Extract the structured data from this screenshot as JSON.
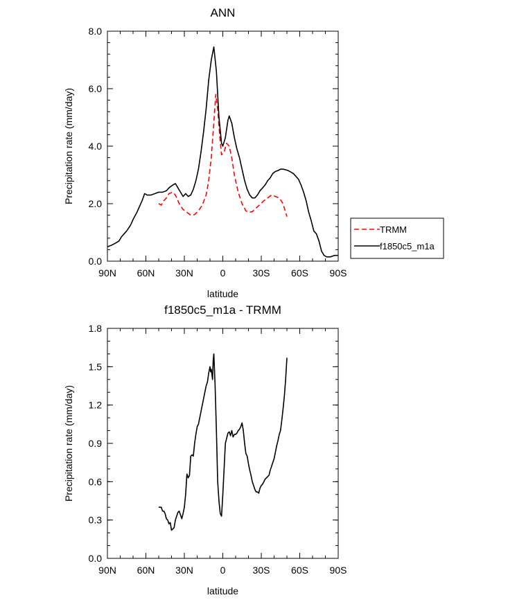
{
  "chart_data": [
    {
      "type": "line",
      "title": "ANN",
      "xlabel": "latitude",
      "ylabel": "Precipitation rate (mm/day)",
      "xlim": [
        90,
        -90
      ],
      "ylim": [
        0,
        8
      ],
      "xticks": [
        {
          "value": 90,
          "label": "90N"
        },
        {
          "value": 60,
          "label": "60N"
        },
        {
          "value": 30,
          "label": "30N"
        },
        {
          "value": 0,
          "label": "0"
        },
        {
          "value": -30,
          "label": "30S"
        },
        {
          "value": -60,
          "label": "60S"
        },
        {
          "value": -90,
          "label": "90S"
        }
      ],
      "yticks": [
        {
          "value": 0,
          "label": "0.0"
        },
        {
          "value": 2,
          "label": "2.0"
        },
        {
          "value": 4,
          "label": "4.0"
        },
        {
          "value": 6,
          "label": "6.0"
        },
        {
          "value": 8,
          "label": "8.0"
        }
      ],
      "legend_position": "right-middle",
      "series": [
        {
          "name": "TRMM",
          "color": "#ff0000",
          "dash": "dashed",
          "points": [
            [
              50,
              2.0
            ],
            [
              48,
              1.95
            ],
            [
              46,
              2.1
            ],
            [
              44,
              2.2
            ],
            [
              42,
              2.35
            ],
            [
              39,
              2.4
            ],
            [
              37,
              2.3
            ],
            [
              34,
              2.0
            ],
            [
              31,
              1.8
            ],
            [
              28,
              1.7
            ],
            [
              25,
              1.6
            ],
            [
              22,
              1.62
            ],
            [
              19,
              1.75
            ],
            [
              16,
              1.95
            ],
            [
              13,
              2.3
            ],
            [
              11,
              2.8
            ],
            [
              9,
              3.6
            ],
            [
              7,
              4.8
            ],
            [
              5.5,
              5.8
            ],
            [
              4,
              5.3
            ],
            [
              2.5,
              4.4
            ],
            [
              1,
              3.7
            ],
            [
              -1,
              3.8
            ],
            [
              -3,
              4.1
            ],
            [
              -5,
              4.0
            ],
            [
              -7,
              3.6
            ],
            [
              -9,
              3.0
            ],
            [
              -12,
              2.4
            ],
            [
              -15,
              2.0
            ],
            [
              -18,
              1.75
            ],
            [
              -20,
              1.7
            ],
            [
              -23,
              1.72
            ],
            [
              -26,
              1.85
            ],
            [
              -29,
              1.97
            ],
            [
              -32,
              2.1
            ],
            [
              -35,
              2.2
            ],
            [
              -38,
              2.3
            ],
            [
              -41,
              2.25
            ],
            [
              -44,
              2.2
            ],
            [
              -47,
              2.0
            ],
            [
              -50,
              1.55
            ]
          ]
        },
        {
          "name": "f1850c5_m1a",
          "color": "#000000",
          "dash": "solid",
          "points": [
            [
              90,
              0.5
            ],
            [
              87,
              0.55
            ],
            [
              84,
              0.62
            ],
            [
              81,
              0.7
            ],
            [
              79,
              0.85
            ],
            [
              77,
              0.95
            ],
            [
              75,
              1.05
            ],
            [
              72,
              1.25
            ],
            [
              70,
              1.45
            ],
            [
              67,
              1.7
            ],
            [
              65,
              1.9
            ],
            [
              63,
              2.1
            ],
            [
              61,
              2.35
            ],
            [
              59,
              2.3
            ],
            [
              56,
              2.3
            ],
            [
              53,
              2.35
            ],
            [
              50,
              2.4
            ],
            [
              47,
              2.4
            ],
            [
              44,
              2.45
            ],
            [
              42,
              2.55
            ],
            [
              39,
              2.65
            ],
            [
              37,
              2.7
            ],
            [
              35,
              2.55
            ],
            [
              33,
              2.4
            ],
            [
              31,
              2.25
            ],
            [
              29,
              2.35
            ],
            [
              27,
              2.25
            ],
            [
              25,
              2.3
            ],
            [
              23,
              2.5
            ],
            [
              21,
              2.8
            ],
            [
              19,
              3.2
            ],
            [
              17,
              3.8
            ],
            [
              15,
              4.5
            ],
            [
              13,
              5.3
            ],
            [
              11,
              6.3
            ],
            [
              9,
              7.0
            ],
            [
              7,
              7.45
            ],
            [
              5,
              6.6
            ],
            [
              3,
              5.0
            ],
            [
              1,
              4.1
            ],
            [
              0,
              4.0
            ],
            [
              -2,
              4.3
            ],
            [
              -4,
              4.9
            ],
            [
              -5,
              5.05
            ],
            [
              -7,
              4.8
            ],
            [
              -9,
              4.3
            ],
            [
              -11,
              3.9
            ],
            [
              -13,
              3.6
            ],
            [
              -15,
              3.2
            ],
            [
              -17,
              2.8
            ],
            [
              -19,
              2.5
            ],
            [
              -21,
              2.3
            ],
            [
              -23,
              2.2
            ],
            [
              -25,
              2.2
            ],
            [
              -27,
              2.3
            ],
            [
              -29,
              2.45
            ],
            [
              -31,
              2.55
            ],
            [
              -33,
              2.65
            ],
            [
              -35,
              2.8
            ],
            [
              -37,
              2.9
            ],
            [
              -39,
              3.05
            ],
            [
              -41,
              3.12
            ],
            [
              -43,
              3.15
            ],
            [
              -45,
              3.2
            ],
            [
              -47,
              3.2
            ],
            [
              -49,
              3.18
            ],
            [
              -51,
              3.15
            ],
            [
              -53,
              3.1
            ],
            [
              -55,
              3.05
            ],
            [
              -57,
              2.95
            ],
            [
              -59,
              2.85
            ],
            [
              -61,
              2.65
            ],
            [
              -63,
              2.4
            ],
            [
              -65,
              2.1
            ],
            [
              -67,
              1.7
            ],
            [
              -69,
              1.4
            ],
            [
              -71,
              1.05
            ],
            [
              -73,
              0.95
            ],
            [
              -75,
              0.7
            ],
            [
              -77,
              0.35
            ],
            [
              -79,
              0.2
            ],
            [
              -81,
              0.15
            ],
            [
              -84,
              0.15
            ],
            [
              -87,
              0.2
            ],
            [
              -90,
              0.2
            ]
          ]
        }
      ]
    },
    {
      "type": "line",
      "title": "f1850c5_m1a - TRMM",
      "xlabel": "latitude",
      "ylabel": "Precipitation rate (mm/day)",
      "xlim": [
        90,
        -90
      ],
      "ylim": [
        0,
        1.8
      ],
      "xticks": [
        {
          "value": 90,
          "label": "90N"
        },
        {
          "value": 60,
          "label": "60N"
        },
        {
          "value": 30,
          "label": "30N"
        },
        {
          "value": 0,
          "label": "0"
        },
        {
          "value": -30,
          "label": "30S"
        },
        {
          "value": -60,
          "label": "60S"
        },
        {
          "value": -90,
          "label": "90S"
        }
      ],
      "yticks": [
        {
          "value": 0,
          "label": "0.0"
        },
        {
          "value": 0.3,
          "label": "0.3"
        },
        {
          "value": 0.6,
          "label": "0.6"
        },
        {
          "value": 0.9,
          "label": "0.9"
        },
        {
          "value": 1.2,
          "label": "1.2"
        },
        {
          "value": 1.5,
          "label": "1.5"
        },
        {
          "value": 1.8,
          "label": "1.8"
        }
      ],
      "series": [
        {
          "name": "f1850c5_m1a - TRMM",
          "color": "#000000",
          "dash": "solid",
          "points": [
            [
              50,
              0.4
            ],
            [
              48,
              0.4
            ],
            [
              47,
              0.37
            ],
            [
              46,
              0.37
            ],
            [
              45,
              0.35
            ],
            [
              44,
              0.31
            ],
            [
              43,
              0.3
            ],
            [
              42,
              0.27
            ],
            [
              41,
              0.28
            ],
            [
              40,
              0.22
            ],
            [
              39,
              0.23
            ],
            [
              38,
              0.24
            ],
            [
              37,
              0.3
            ],
            [
              35,
              0.36
            ],
            [
              34,
              0.37
            ],
            [
              33,
              0.34
            ],
            [
              32,
              0.31
            ],
            [
              31,
              0.35
            ],
            [
              30,
              0.4
            ],
            [
              29,
              0.5
            ],
            [
              28,
              0.66
            ],
            [
              27,
              0.63
            ],
            [
              26,
              0.65
            ],
            [
              25,
              0.8
            ],
            [
              24,
              0.81
            ],
            [
              23,
              0.8
            ],
            [
              22,
              0.9
            ],
            [
              21,
              0.97
            ],
            [
              20,
              1.03
            ],
            [
              19,
              1.05
            ],
            [
              18,
              1.1
            ],
            [
              17,
              1.15
            ],
            [
              16,
              1.2
            ],
            [
              15,
              1.25
            ],
            [
              14,
              1.3
            ],
            [
              13,
              1.35
            ],
            [
              12,
              1.38
            ],
            [
              11,
              1.45
            ],
            [
              10,
              1.5
            ],
            [
              9.5,
              1.46
            ],
            [
              9,
              1.48
            ],
            [
              8,
              1.4
            ],
            [
              7.5,
              1.55
            ],
            [
              7,
              1.6
            ],
            [
              6,
              1.35
            ],
            [
              5,
              1.0
            ],
            [
              4,
              0.6
            ],
            [
              3,
              0.45
            ],
            [
              2,
              0.35
            ],
            [
              1,
              0.33
            ],
            [
              0,
              0.5
            ],
            [
              -1,
              0.7
            ],
            [
              -2,
              0.9
            ],
            [
              -3,
              0.94
            ],
            [
              -4,
              0.98
            ],
            [
              -5,
              0.99
            ],
            [
              -6,
              0.96
            ],
            [
              -7,
              1.0
            ],
            [
              -8,
              0.95
            ],
            [
              -9,
              0.97
            ],
            [
              -10,
              0.97
            ],
            [
              -11,
              0.98
            ],
            [
              -12,
              1.0
            ],
            [
              -13,
              1.01
            ],
            [
              -14,
              1.03
            ],
            [
              -15,
              1.06
            ],
            [
              -16,
              1.0
            ],
            [
              -17,
              0.9
            ],
            [
              -18,
              0.82
            ],
            [
              -19,
              0.8
            ],
            [
              -20,
              0.74
            ],
            [
              -21,
              0.69
            ],
            [
              -22,
              0.65
            ],
            [
              -23,
              0.6
            ],
            [
              -24,
              0.57
            ],
            [
              -25,
              0.54
            ],
            [
              -26,
              0.52
            ],
            [
              -27,
              0.52
            ],
            [
              -28,
              0.51
            ],
            [
              -29,
              0.55
            ],
            [
              -30,
              0.57
            ],
            [
              -31,
              0.58
            ],
            [
              -32,
              0.6
            ],
            [
              -33,
              0.62
            ],
            [
              -34,
              0.63
            ],
            [
              -35,
              0.64
            ],
            [
              -36,
              0.65
            ],
            [
              -37,
              0.69
            ],
            [
              -38,
              0.72
            ],
            [
              -39,
              0.75
            ],
            [
              -40,
              0.78
            ],
            [
              -41,
              0.83
            ],
            [
              -42,
              0.88
            ],
            [
              -43,
              0.92
            ],
            [
              -44,
              0.97
            ],
            [
              -45,
              1.0
            ],
            [
              -46,
              1.08
            ],
            [
              -47,
              1.17
            ],
            [
              -48,
              1.27
            ],
            [
              -49,
              1.4
            ],
            [
              -50,
              1.57
            ]
          ]
        }
      ]
    }
  ]
}
